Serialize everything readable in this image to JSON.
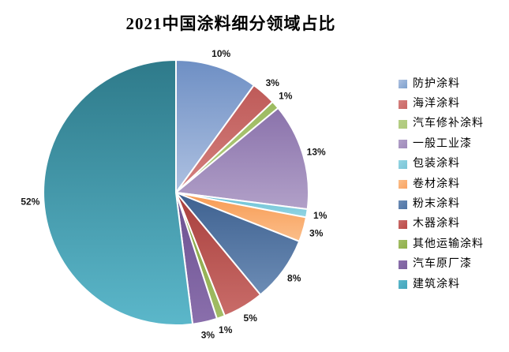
{
  "title": "2021中国涂料细分领域占比",
  "chart_data": {
    "type": "pie",
    "title": "2021中国涂料细分领域占比",
    "unit": "percent",
    "direction": "clockwise",
    "start_angle_deg": 0,
    "legend_position": "right",
    "grid": false,
    "segments": [
      {
        "label": "防护涂料",
        "value": 10,
        "percent_label": "10%",
        "color": "#7DA0CC",
        "gradient": [
          "#6E8FC4",
          "#AEC1E1"
        ]
      },
      {
        "label": "海洋涂料",
        "value": 3,
        "percent_label": "3%",
        "color": "#CA6765",
        "gradient": [
          "#BE5A58",
          "#D5817F"
        ]
      },
      {
        "label": "汽车修补涂料",
        "value": 1,
        "percent_label": "1%",
        "color": "#AFC97C",
        "gradient": [
          "#9CBA5F",
          "#B5CF85"
        ]
      },
      {
        "label": "一般工业漆",
        "value": 13,
        "percent_label": "13%",
        "color": "#9F8ABA",
        "gradient": [
          "#8A72AB",
          "#B1A0C8"
        ]
      },
      {
        "label": "包装涂料",
        "value": 1,
        "percent_label": "1%",
        "color": "#7AC4D7",
        "gradient": [
          "#65BED3",
          "#93D5E3"
        ]
      },
      {
        "label": "卷材涂料",
        "value": 3,
        "percent_label": "3%",
        "color": "#FAA363",
        "gradient": [
          "#F79A52",
          "#FBBE8A"
        ]
      },
      {
        "label": "粉末涂料",
        "value": 8,
        "percent_label": "8%",
        "color": "#4E74A6",
        "gradient": [
          "#3E6190",
          "#6C8CB5"
        ]
      },
      {
        "label": "木器涂料",
        "value": 5,
        "percent_label": "5%",
        "color": "#BC4946",
        "gradient": [
          "#A83F3C",
          "#C96C69"
        ]
      },
      {
        "label": "其他运输涂料",
        "value": 1,
        "percent_label": "1%",
        "color": "#8FB04A",
        "gradient": [
          "#7FA03C",
          "#A3BE66"
        ]
      },
      {
        "label": "汽车原厂漆",
        "value": 3,
        "percent_label": "3%",
        "color": "#7C609E",
        "gradient": [
          "#6B5190",
          "#8A6FAC"
        ]
      },
      {
        "label": "建筑涂料",
        "value": 52,
        "percent_label": "52%",
        "color": "#43A5BC",
        "gradient": [
          "#2E7A8A",
          "#5BB7CA"
        ]
      }
    ]
  }
}
